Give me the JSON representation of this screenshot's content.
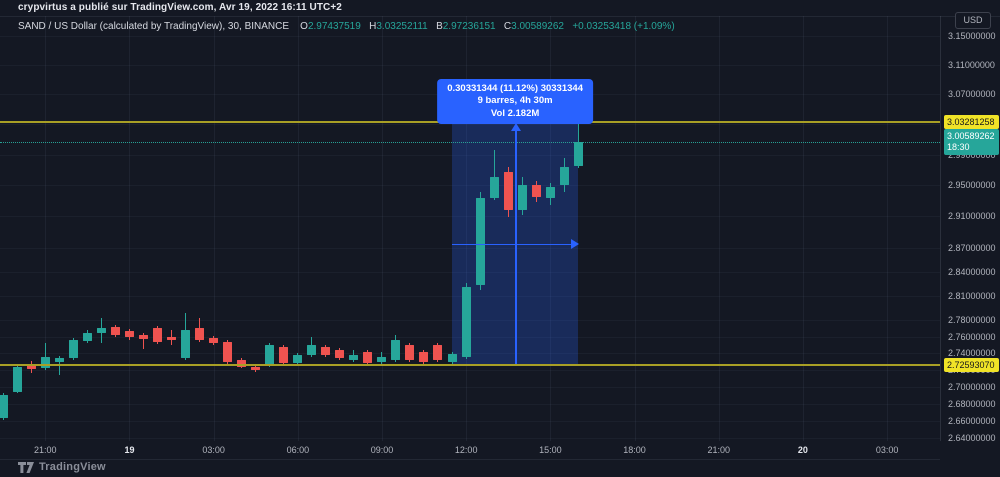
{
  "colors": {
    "background": "#141823",
    "candle_up": "#26a69a",
    "candle_down": "#ef5350",
    "measure_blue": "#2962ff",
    "alert_yellow_line": "#a89f25",
    "alert_yellow_label": "#f0e327",
    "last_price_teal": "#26a69a",
    "axis_text": "#b2b5be"
  },
  "attribution": {
    "text": "crypvirtus a publié sur TradingView.com, Avr 19, 2022 16:11 UTC+2"
  },
  "symbol_info": {
    "title": "SAND / US Dollar (calculated by TradingView), 30, BINANCE",
    "o_label": "O",
    "o": "2.97437519",
    "h_label": "H",
    "h": "3.03252111",
    "l_label": "B",
    "l": "2.97236151",
    "c_label": "C",
    "c": "3.00589262",
    "change": "+0.03253418 (+1.09%)"
  },
  "axis": {
    "currency_badge": "USD"
  },
  "footer": {
    "brand": "TradingView"
  },
  "chart_data": {
    "type": "candlestick",
    "symbol": "SAND / US Dollar",
    "exchange": "BINANCE",
    "interval": "30",
    "scale": "log",
    "y_axis_ticks": [
      3.15,
      3.11,
      3.07,
      3.03,
      2.99,
      2.95,
      2.91,
      2.87,
      2.84,
      2.81,
      2.78,
      2.76,
      2.74,
      2.72,
      2.7,
      2.68,
      2.66,
      2.64
    ],
    "x_axis_ticks": [
      {
        "label": "21:00",
        "major": false
      },
      {
        "label": "19",
        "major": true
      },
      {
        "label": "03:00",
        "major": false
      },
      {
        "label": "06:00",
        "major": false
      },
      {
        "label": "09:00",
        "major": false
      },
      {
        "label": "12:00",
        "major": false
      },
      {
        "label": "15:00",
        "major": false
      },
      {
        "label": "18:00",
        "major": false
      },
      {
        "label": "21:00",
        "major": false
      },
      {
        "label": "20",
        "major": true
      },
      {
        "label": "03:00",
        "major": false
      }
    ],
    "levels": [
      {
        "price": 3.03281258,
        "label": "3.03281258"
      },
      {
        "price": 2.7259307,
        "label": "2.72593070"
      }
    ],
    "last_price": {
      "value": 3.00589262,
      "label": "3.00589262",
      "countdown": "18:30"
    },
    "measure": {
      "lines": [
        "0.30331344 (11.12%) 30331344",
        "9 barres, 4h 30m",
        "Vol 2.182M"
      ],
      "price_start": 2.72758,
      "price_end": 3.0309,
      "bar_start": 32,
      "bar_end": 41,
      "bars": 9,
      "duration": "4h 30m",
      "change": 0.30331344,
      "change_pct": 11.12,
      "volume": "2.182M"
    },
    "candles": [
      {
        "t": "19:30",
        "o": 2.6633,
        "h": 2.6927,
        "l": 2.661,
        "c": 2.6903
      },
      {
        "t": "20:00",
        "o": 2.6939,
        "h": 2.7248,
        "l": 2.6927,
        "c": 2.7236
      },
      {
        "t": "20:30",
        "o": 2.7272,
        "h": 2.7308,
        "l": 2.7164,
        "c": 2.7212
      },
      {
        "t": "21:00",
        "o": 2.7224,
        "h": 2.7525,
        "l": 2.72,
        "c": 2.7356
      },
      {
        "t": "21:30",
        "o": 2.7296,
        "h": 2.7368,
        "l": 2.714,
        "c": 2.7344
      },
      {
        "t": "22:00",
        "o": 2.7344,
        "h": 2.7585,
        "l": 2.732,
        "c": 2.7561
      },
      {
        "t": "22:30",
        "o": 2.7549,
        "h": 2.7683,
        "l": 2.7525,
        "c": 2.7646
      },
      {
        "t": "23:00",
        "o": 2.7646,
        "h": 2.7829,
        "l": 2.7525,
        "c": 2.7707
      },
      {
        "t": "23:30",
        "o": 2.7719,
        "h": 2.7744,
        "l": 2.7598,
        "c": 2.7622
      },
      {
        "t": "00:00",
        "o": 2.7671,
        "h": 2.7695,
        "l": 2.7561,
        "c": 2.7598
      },
      {
        "t": "00:30",
        "o": 2.7622,
        "h": 2.7646,
        "l": 2.7453,
        "c": 2.7573
      },
      {
        "t": "01:00",
        "o": 2.7707,
        "h": 2.7732,
        "l": 2.7513,
        "c": 2.7537
      },
      {
        "t": "01:30",
        "o": 2.7598,
        "h": 2.7683,
        "l": 2.7501,
        "c": 2.7561
      },
      {
        "t": "02:00",
        "o": 2.7344,
        "h": 2.789,
        "l": 2.732,
        "c": 2.7683
      },
      {
        "t": "02:30",
        "o": 2.7707,
        "h": 2.7829,
        "l": 2.7537,
        "c": 2.7561
      },
      {
        "t": "03:00",
        "o": 2.7585,
        "h": 2.761,
        "l": 2.7501,
        "c": 2.7525
      },
      {
        "t": "03:30",
        "o": 2.7537,
        "h": 2.7561,
        "l": 2.7272,
        "c": 2.7296
      },
      {
        "t": "04:00",
        "o": 2.732,
        "h": 2.7344,
        "l": 2.7224,
        "c": 2.7236
      },
      {
        "t": "04:30",
        "o": 2.7236,
        "h": 2.726,
        "l": 2.7176,
        "c": 2.72
      },
      {
        "t": "05:00",
        "o": 2.726,
        "h": 2.7525,
        "l": 2.7236,
        "c": 2.7501
      },
      {
        "t": "05:30",
        "o": 2.7477,
        "h": 2.7501,
        "l": 2.726,
        "c": 2.7284
      },
      {
        "t": "06:00",
        "o": 2.7284,
        "h": 2.7404,
        "l": 2.726,
        "c": 2.738
      },
      {
        "t": "06:30",
        "o": 2.738,
        "h": 2.7598,
        "l": 2.7356,
        "c": 2.7501
      },
      {
        "t": "07:00",
        "o": 2.7477,
        "h": 2.7501,
        "l": 2.7356,
        "c": 2.738
      },
      {
        "t": "07:30",
        "o": 2.7441,
        "h": 2.7465,
        "l": 2.732,
        "c": 2.7344
      },
      {
        "t": "08:00",
        "o": 2.732,
        "h": 2.7441,
        "l": 2.7296,
        "c": 2.738
      },
      {
        "t": "08:30",
        "o": 2.7417,
        "h": 2.7441,
        "l": 2.726,
        "c": 2.7284
      },
      {
        "t": "09:00",
        "o": 2.7296,
        "h": 2.7417,
        "l": 2.7272,
        "c": 2.7356
      },
      {
        "t": "09:30",
        "o": 2.732,
        "h": 2.7622,
        "l": 2.7296,
        "c": 2.7561
      },
      {
        "t": "10:00",
        "o": 2.7501,
        "h": 2.7525,
        "l": 2.7296,
        "c": 2.732
      },
      {
        "t": "10:30",
        "o": 2.7417,
        "h": 2.7441,
        "l": 2.7272,
        "c": 2.7296
      },
      {
        "t": "11:00",
        "o": 2.7501,
        "h": 2.7525,
        "l": 2.7296,
        "c": 2.732
      },
      {
        "t": "11:30",
        "o": 2.7296,
        "h": 2.7417,
        "l": 2.7272,
        "c": 2.7392
      },
      {
        "t": "12:00",
        "o": 2.7356,
        "h": 2.826,
        "l": 2.7332,
        "c": 2.821
      },
      {
        "t": "12:30",
        "o": 2.8235,
        "h": 2.9412,
        "l": 2.8173,
        "c": 2.9334
      },
      {
        "t": "13:00",
        "o": 2.9334,
        "h": 2.9959,
        "l": 2.9308,
        "c": 2.9606
      },
      {
        "t": "13:30",
        "o": 2.9671,
        "h": 2.9736,
        "l": 2.909,
        "c": 2.918
      },
      {
        "t": "14:00",
        "o": 2.918,
        "h": 2.9607,
        "l": 2.9116,
        "c": 2.9503
      },
      {
        "t": "14:30",
        "o": 2.9503,
        "h": 2.9555,
        "l": 2.9283,
        "c": 2.9347
      },
      {
        "t": "15:00",
        "o": 2.9334,
        "h": 2.9529,
        "l": 2.9244,
        "c": 2.9477
      },
      {
        "t": "15:30",
        "o": 2.9503,
        "h": 2.9854,
        "l": 2.9412,
        "c": 2.9736
      },
      {
        "t": "16:00",
        "o": 2.97437519,
        "h": 3.03252111,
        "l": 2.97236151,
        "c": 3.00589262
      }
    ]
  }
}
